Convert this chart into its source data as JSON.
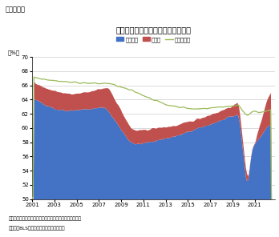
{
  "title": "就業者数、求人数および労働参加率",
  "subtitle": "（図表８）",
  "ylabel": "（%）",
  "note1": "（注）就業者数および求人数の生産年齢人口に対する比率",
  "note2": "（資料）BLSよりニッセイ基礎研究所作成",
  "ylim": [
    50,
    70
  ],
  "yticks": [
    50,
    52,
    54,
    56,
    58,
    60,
    62,
    64,
    66,
    68,
    70
  ],
  "xtick_labels": [
    "2001",
    "2003",
    "2005",
    "2007",
    "2009",
    "2011",
    "2013",
    "2015",
    "2017",
    "2019",
    "2021"
  ],
  "xtick_pos": [
    2001,
    2003,
    2005,
    2007,
    2009,
    2011,
    2013,
    2015,
    2017,
    2019,
    2021
  ],
  "legend_labels": [
    "就業者数",
    "求人数",
    "労働参加率"
  ],
  "employed_color": "#4472C4",
  "openings_color": "#C0504D",
  "participation_color": "#9BBB59",
  "background_color": "#FFFFFF",
  "grid_color": "#C0C0C0",
  "xlim": [
    2001,
    2022.8
  ]
}
